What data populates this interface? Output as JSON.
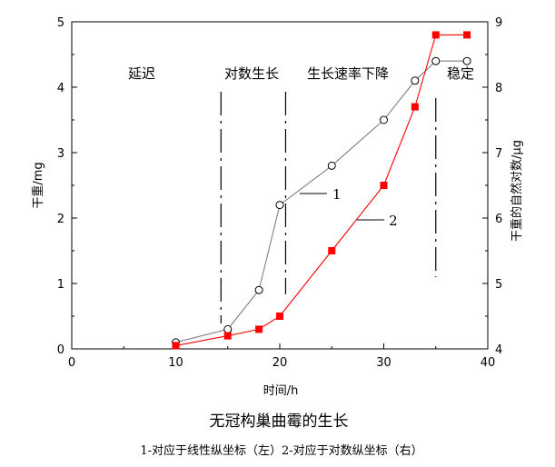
{
  "chart_data": {
    "type": "line",
    "title": "无冠构巢曲霉的生长",
    "subtitle": "1-对应于线性纵坐标（左）2-对应于对数纵坐标（右）",
    "xlabel": "时间/h",
    "ylabel_left": "干重/mg",
    "ylabel_right": "干重的自然对数/μg",
    "xlim": [
      0,
      40
    ],
    "ylim_left": [
      0,
      5
    ],
    "ylim_right": [
      4,
      9
    ],
    "x_ticks": [
      "0",
      "10",
      "20",
      "30",
      "40"
    ],
    "y_left_ticks": [
      "0",
      "1",
      "2",
      "3",
      "4",
      "5"
    ],
    "y_right_ticks": [
      "4",
      "5",
      "6",
      "7",
      "8",
      "9"
    ],
    "grid": false,
    "series": [
      {
        "label": "1",
        "axis": "left",
        "color": "#808080",
        "marker": "open-circle",
        "x": [
          10,
          15,
          18,
          20,
          25,
          30,
          33,
          35,
          38
        ],
        "y": [
          0.1,
          0.3,
          0.9,
          2.2,
          2.8,
          3.5,
          4.1,
          4.4,
          4.4
        ]
      },
      {
        "label": "2",
        "axis": "right",
        "color": "#ff0000",
        "marker": "filled-square",
        "x": [
          10,
          15,
          18,
          20,
          25,
          30,
          33,
          35,
          38
        ],
        "y": [
          4.05,
          4.2,
          4.3,
          4.5,
          5.5,
          6.5,
          7.7,
          8.8,
          8.8
        ]
      }
    ],
    "phases": [
      {
        "label": "延迟"
      },
      {
        "label": "对数生长"
      },
      {
        "label": "生长速率下降"
      },
      {
        "label": "稳定"
      }
    ],
    "phase_boundaries": [
      14,
      21,
      35
    ]
  }
}
